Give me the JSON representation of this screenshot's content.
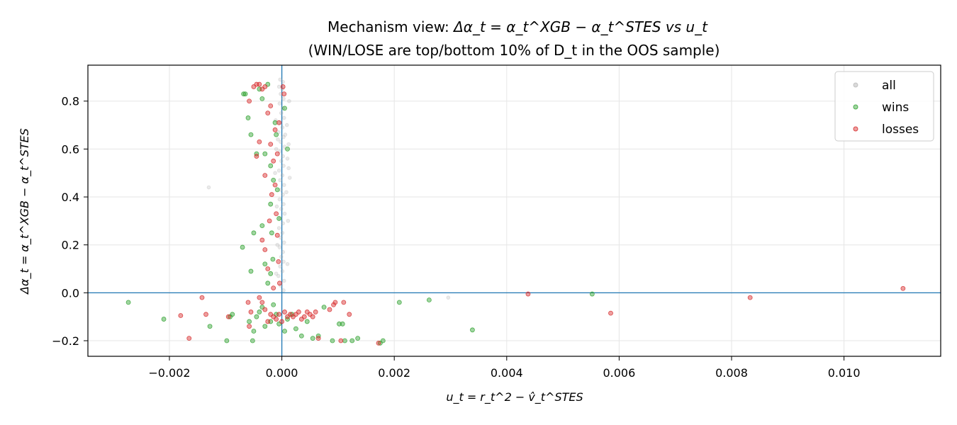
{
  "chart_data": {
    "type": "scatter",
    "title_line1_prefix": "Mechanism view: ",
    "title_line1_formula": "Δα_t = α_t^XGB − α_t^STES vs u_t",
    "title_line2": "(WIN/LOSE are top/bottom 10% of D_t in the OOS sample)",
    "xlabel": "u_t = r_t^2 − v̂_t^STES",
    "ylabel": "Δα_t = α_t^XGB − α_t^STES",
    "xlim": [
      -0.00345,
      0.01172
    ],
    "ylim": [
      -0.265,
      0.95
    ],
    "x_ticks": [
      -0.002,
      0.0,
      0.002,
      0.004,
      0.006,
      0.008,
      0.01
    ],
    "x_tick_labels": [
      "−0.002",
      "0.000",
      "0.002",
      "0.004",
      "0.006",
      "0.008",
      "0.010"
    ],
    "y_ticks": [
      -0.2,
      0.0,
      0.2,
      0.4,
      0.6,
      0.8
    ],
    "y_tick_labels": [
      "−0.2",
      "0.0",
      "0.2",
      "0.4",
      "0.6",
      "0.8"
    ],
    "grid": true,
    "reference_lines": {
      "x": 0.0,
      "y": 0.0,
      "color": "#1f77b4"
    },
    "legend": {
      "position": "top-right",
      "entries": [
        {
          "label": "all",
          "color": "#aaaaaa"
        },
        {
          "label": "wins",
          "color": "#2ca02c"
        },
        {
          "label": "losses",
          "color": "#d62728"
        }
      ]
    },
    "series": [
      {
        "name": "all",
        "color": "#aaaaaa",
        "points": [
          [
            -3e-05,
            0.89
          ],
          [
            2e-05,
            0.88
          ],
          [
            -5e-05,
            0.86
          ],
          [
            1e-05,
            0.85
          ],
          [
            -2e-05,
            0.83
          ],
          [
            3e-05,
            0.81
          ],
          [
            -4e-05,
            0.79
          ],
          [
            2e-05,
            0.77
          ],
          [
            -1e-05,
            0.75
          ],
          [
            4e-05,
            0.73
          ],
          [
            -3e-05,
            0.71
          ],
          [
            1e-05,
            0.69
          ],
          [
            -6e-05,
            0.67
          ],
          [
            3e-05,
            0.65
          ],
          [
            -2e-05,
            0.63
          ],
          [
            5e-05,
            0.61
          ],
          [
            -4e-05,
            0.59
          ],
          [
            2e-05,
            0.57
          ],
          [
            -1e-05,
            0.55
          ],
          [
            3e-05,
            0.53
          ],
          [
            -5e-05,
            0.51
          ],
          [
            1e-05,
            0.49
          ],
          [
            -3e-05,
            0.47
          ],
          [
            4e-05,
            0.45
          ],
          [
            -2e-05,
            0.43
          ],
          [
            2e-05,
            0.41
          ],
          [
            -4e-05,
            0.39
          ],
          [
            3e-05,
            0.37
          ],
          [
            -1e-05,
            0.35
          ],
          [
            5e-05,
            0.33
          ],
          [
            -3e-05,
            0.31
          ],
          [
            2e-05,
            0.29
          ],
          [
            -5e-05,
            0.27
          ],
          [
            1e-05,
            0.25
          ],
          [
            -2e-05,
            0.23
          ],
          [
            4e-05,
            0.21
          ],
          [
            -4e-05,
            0.19
          ],
          [
            2e-05,
            0.17
          ],
          [
            -1e-05,
            0.15
          ],
          [
            3e-05,
            0.13
          ],
          [
            -3e-05,
            0.11
          ],
          [
            1e-05,
            0.09
          ],
          [
            -6e-05,
            0.07
          ],
          [
            4e-05,
            0.05
          ],
          [
            -2e-05,
            0.03
          ],
          [
            3e-05,
            0.01
          ],
          [
            0.00012,
            0.62
          ],
          [
            0.0001,
            0.56
          ],
          [
            0.00012,
            0.52
          ],
          [
            -0.0001,
            0.6
          ],
          [
            -0.00012,
            0.5
          ],
          [
            8e-05,
            0.42
          ],
          [
            -9e-05,
            0.36
          ],
          [
            0.00011,
            0.3
          ],
          [
            9e-05,
            0.7
          ],
          [
            -0.00011,
            0.72
          ],
          [
            0.00013,
            0.8
          ],
          [
            -0.0013,
            0.44
          ],
          [
            0.00296,
            -0.02
          ],
          [
            -8e-05,
            0.2
          ],
          [
            0.0001,
            0.12
          ],
          [
            -0.0001,
            0.08
          ],
          [
            0.00014,
            0.48
          ],
          [
            6e-05,
            0.66
          ],
          [
            -7e-05,
            0.64
          ]
        ]
      },
      {
        "name": "wins",
        "color": "#2ca02c",
        "points": [
          [
            -0.00273,
            -0.04
          ],
          [
            -0.0021,
            -0.11
          ],
          [
            -0.00128,
            -0.14
          ],
          [
            -0.00098,
            -0.2
          ],
          [
            -0.00092,
            -0.1
          ],
          [
            -0.00088,
            -0.09
          ],
          [
            -0.00058,
            -0.12
          ],
          [
            -0.00052,
            -0.2
          ],
          [
            -0.0005,
            -0.16
          ],
          [
            -0.00045,
            -0.1
          ],
          [
            -0.0004,
            -0.08
          ],
          [
            -0.00035,
            -0.06
          ],
          [
            -0.0003,
            -0.14
          ],
          [
            -0.0002,
            -0.12
          ],
          [
            -0.00015,
            -0.05
          ],
          [
            -0.0001,
            -0.09
          ],
          [
            -5e-05,
            -0.13
          ],
          [
            5e-05,
            -0.16
          ],
          [
            0.0001,
            -0.11
          ],
          [
            0.00018,
            -0.09
          ],
          [
            0.00025,
            -0.15
          ],
          [
            0.00035,
            -0.18
          ],
          [
            0.00045,
            -0.12
          ],
          [
            0.00055,
            -0.19
          ],
          [
            0.00065,
            -0.18
          ],
          [
            0.00075,
            -0.06
          ],
          [
            0.0009,
            -0.2
          ],
          [
            0.00102,
            -0.13
          ],
          [
            0.00108,
            -0.13
          ],
          [
            0.00112,
            -0.2
          ],
          [
            0.00125,
            -0.2
          ],
          [
            0.00135,
            -0.19
          ],
          [
            0.00175,
            -0.21
          ],
          [
            0.0018,
            -0.2
          ],
          [
            0.00209,
            -0.04
          ],
          [
            0.00262,
            -0.03
          ],
          [
            0.00339,
            -0.155
          ],
          [
            0.00552,
            -0.005
          ],
          [
            -0.00068,
            0.83
          ],
          [
            -0.00065,
            0.83
          ],
          [
            -0.00055,
            0.66
          ],
          [
            -0.00045,
            0.58
          ],
          [
            -0.0004,
            0.85
          ],
          [
            -0.00035,
            0.81
          ],
          [
            -0.0003,
            0.58
          ],
          [
            -0.00025,
            0.87
          ],
          [
            -0.0002,
            0.53
          ],
          [
            -0.0002,
            0.37
          ],
          [
            -0.00018,
            0.25
          ],
          [
            -0.00015,
            0.47
          ],
          [
            -0.0001,
            0.66
          ],
          [
            -8e-05,
            0.43
          ],
          [
            -5e-05,
            0.31
          ],
          [
            -0.0006,
            0.73
          ],
          [
            -0.0007,
            0.19
          ],
          [
            -0.00055,
            0.09
          ],
          [
            -0.0005,
            0.25
          ],
          [
            -0.00035,
            0.28
          ],
          [
            -0.0003,
            0.12
          ],
          [
            -0.00025,
            0.04
          ],
          [
            -0.0002,
            0.08
          ],
          [
            0.0001,
            0.6
          ],
          [
            5e-05,
            0.77
          ],
          [
            -0.00012,
            0.71
          ],
          [
            -0.00016,
            0.14
          ]
        ]
      },
      {
        "name": "losses",
        "color": "#d62728",
        "points": [
          [
            -0.0018,
            -0.095
          ],
          [
            -0.00165,
            -0.19
          ],
          [
            -0.00142,
            -0.02
          ],
          [
            -0.00135,
            -0.09
          ],
          [
            -0.00095,
            -0.1
          ],
          [
            -0.0006,
            -0.04
          ],
          [
            -0.00058,
            -0.14
          ],
          [
            -0.00055,
            -0.08
          ],
          [
            -0.00058,
            0.8
          ],
          [
            -0.00045,
            0.57
          ],
          [
            -0.0004,
            -0.02
          ],
          [
            -0.00035,
            -0.04
          ],
          [
            -0.0003,
            -0.07
          ],
          [
            -0.00025,
            -0.12
          ],
          [
            -0.0002,
            -0.09
          ],
          [
            -0.00015,
            -0.1
          ],
          [
            -0.0001,
            -0.11
          ],
          [
            -5e-05,
            -0.09
          ],
          [
            0.0,
            -0.12
          ],
          [
            5e-05,
            -0.08
          ],
          [
            0.0001,
            -0.1
          ],
          [
            0.00015,
            -0.09
          ],
          [
            0.0002,
            -0.1
          ],
          [
            0.00025,
            -0.09
          ],
          [
            0.0003,
            -0.08
          ],
          [
            0.00035,
            -0.11
          ],
          [
            0.0004,
            -0.1
          ],
          [
            0.00045,
            -0.08
          ],
          [
            0.0005,
            -0.09
          ],
          [
            0.00055,
            -0.1
          ],
          [
            0.0006,
            -0.08
          ],
          [
            0.00065,
            -0.19
          ],
          [
            0.00085,
            -0.07
          ],
          [
            0.00092,
            -0.05
          ],
          [
            0.00095,
            -0.04
          ],
          [
            0.0011,
            -0.04
          ],
          [
            0.00105,
            -0.2
          ],
          [
            0.0012,
            -0.09
          ],
          [
            0.00172,
            -0.21
          ],
          [
            0.00438,
            -0.005
          ],
          [
            0.00585,
            -0.085
          ],
          [
            0.00833,
            -0.02
          ],
          [
            0.01105,
            0.018
          ],
          [
            -0.0005,
            0.86
          ],
          [
            -0.00045,
            0.87
          ],
          [
            -0.0004,
            0.87
          ],
          [
            -0.00035,
            0.85
          ],
          [
            -0.0003,
            0.86
          ],
          [
            -0.00025,
            0.75
          ],
          [
            -0.0002,
            0.78
          ],
          [
            -0.0002,
            0.62
          ],
          [
            -0.00015,
            0.55
          ],
          [
            -0.00012,
            0.45
          ],
          [
            -0.0001,
            0.33
          ],
          [
            -8e-05,
            0.24
          ],
          [
            -6e-05,
            0.13
          ],
          [
            -4e-05,
            0.04
          ],
          [
            -0.0003,
            0.18
          ],
          [
            -0.00022,
            0.3
          ],
          [
            -0.00018,
            0.41
          ],
          [
            -0.00012,
            0.68
          ],
          [
            -8e-05,
            0.58
          ],
          [
            -5e-05,
            0.71
          ],
          [
            -0.00015,
            0.02
          ],
          [
            -0.00025,
            0.1
          ],
          [
            2e-05,
            0.86
          ],
          [
            4e-05,
            0.83
          ],
          [
            -0.00035,
            0.22
          ],
          [
            -0.0004,
            0.63
          ],
          [
            -0.0003,
            0.49
          ]
        ]
      }
    ]
  }
}
